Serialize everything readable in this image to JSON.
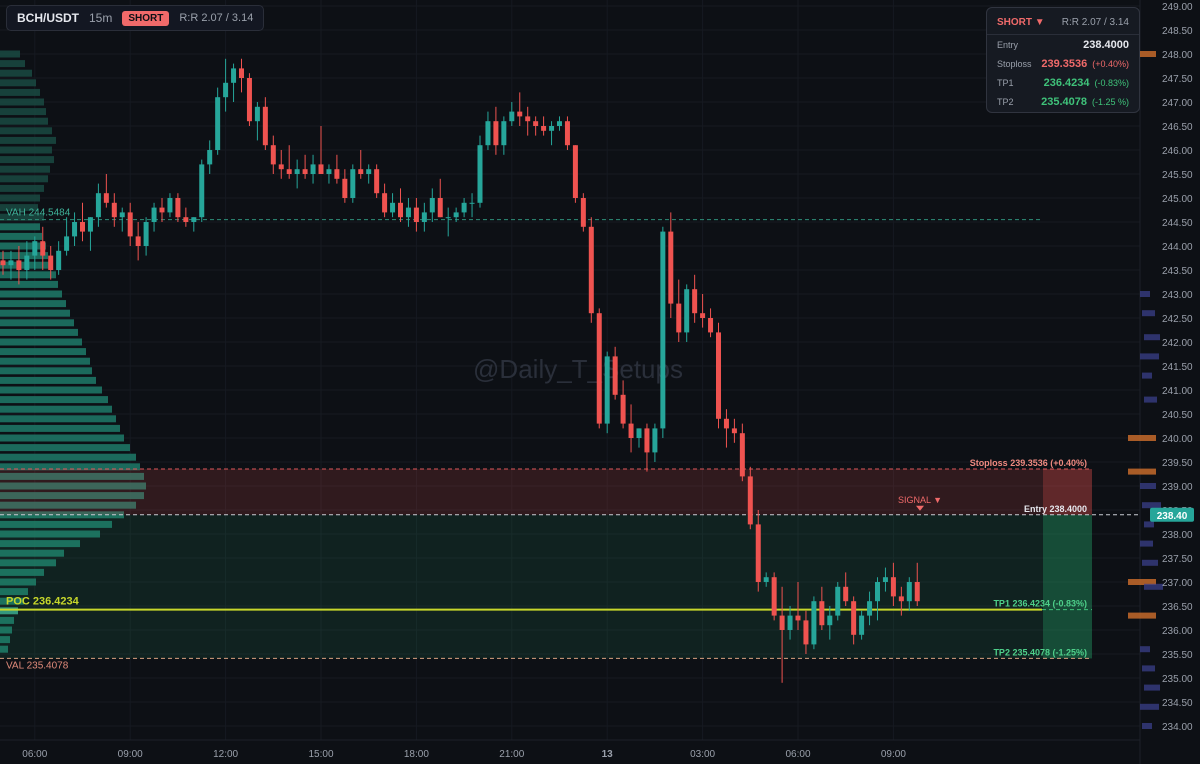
{
  "header": {
    "symbol": "BCH/USDT",
    "timeframe": "15m",
    "side": "SHORT",
    "rr": "R:R 2.07 / 3.14"
  },
  "panel": {
    "title": "SHORT ▼",
    "rr": "R:R 2.07 / 3.14",
    "rows": [
      {
        "label": "Entry",
        "value": "238.4000",
        "pct": ""
      },
      {
        "label": "Stoploss",
        "value": "239.3536",
        "pct": "(+0.40%)"
      },
      {
        "label": "TP1",
        "value": "236.4234",
        "pct": "(-0.83%)"
      },
      {
        "label": "TP2",
        "value": "235.4078",
        "pct": "(-1.25 %)"
      }
    ]
  },
  "watermark": "@Daily_T_Setups",
  "colors": {
    "up": "#26a69a",
    "down": "#ef5350",
    "stop": "#f06a6a",
    "target": "#3fc27a",
    "poc": "#c7d72b",
    "bg": "#0d1015"
  },
  "chart_data": {
    "type": "candlestick",
    "ylim": [
      233.6,
      249.1
    ],
    "yticks": [
      "249.00",
      "248.50",
      "248.00",
      "247.50",
      "247.00",
      "246.50",
      "246.00",
      "245.50",
      "245.00",
      "244.50",
      "244.00",
      "243.50",
      "243.00",
      "242.50",
      "242.00",
      "241.50",
      "241.00",
      "240.50",
      "240.00",
      "239.50",
      "239.00",
      "238.50",
      "238.00",
      "237.50",
      "237.00",
      "236.50",
      "236.00",
      "235.50",
      "235.00",
      "234.50",
      "234.00"
    ],
    "xticks": [
      {
        "label": "06:00",
        "i": 4
      },
      {
        "label": "09:00",
        "i": 16
      },
      {
        "label": "12:00",
        "i": 28
      },
      {
        "label": "15:00",
        "i": 40
      },
      {
        "label": "18:00",
        "i": 52
      },
      {
        "label": "21:00",
        "i": 64
      },
      {
        "label": "13",
        "i": 76
      },
      {
        "label": "03:00",
        "i": 88
      },
      {
        "label": "06:00",
        "i": 100
      },
      {
        "label": "09:00",
        "i": 112
      }
    ],
    "candles": [
      [
        243.7,
        243.9,
        243.4,
        243.6
      ],
      [
        243.6,
        243.9,
        243.3,
        243.7
      ],
      [
        243.7,
        244.0,
        243.2,
        243.5
      ],
      [
        243.5,
        244.1,
        243.3,
        243.8
      ],
      [
        243.8,
        244.2,
        243.5,
        244.1
      ],
      [
        244.1,
        244.4,
        243.5,
        243.8
      ],
      [
        243.8,
        244.0,
        243.3,
        243.5
      ],
      [
        243.5,
        244.1,
        243.4,
        243.9
      ],
      [
        243.9,
        244.6,
        243.8,
        244.2
      ],
      [
        244.2,
        244.7,
        244.0,
        244.5
      ],
      [
        244.5,
        244.9,
        244.1,
        244.3
      ],
      [
        244.3,
        244.6,
        243.9,
        244.6
      ],
      [
        244.6,
        245.3,
        244.4,
        245.1
      ],
      [
        245.1,
        245.5,
        244.8,
        244.9
      ],
      [
        244.9,
        245.1,
        244.4,
        244.6
      ],
      [
        244.6,
        244.8,
        244.3,
        244.7
      ],
      [
        244.7,
        244.9,
        244.0,
        244.2
      ],
      [
        244.2,
        244.5,
        243.7,
        244.0
      ],
      [
        244.0,
        244.6,
        243.8,
        244.5
      ],
      [
        244.5,
        244.9,
        244.3,
        244.8
      ],
      [
        244.8,
        245.0,
        244.5,
        244.7
      ],
      [
        244.7,
        245.1,
        244.6,
        245.0
      ],
      [
        245.0,
        245.1,
        244.5,
        244.6
      ],
      [
        244.6,
        244.8,
        244.4,
        244.5
      ],
      [
        244.5,
        244.6,
        244.3,
        244.6
      ],
      [
        244.6,
        245.8,
        244.5,
        245.7
      ],
      [
        245.7,
        246.2,
        245.5,
        246.0
      ],
      [
        246.0,
        247.3,
        245.9,
        247.1
      ],
      [
        247.1,
        247.9,
        246.8,
        247.4
      ],
      [
        247.4,
        247.8,
        247.0,
        247.7
      ],
      [
        247.7,
        247.9,
        247.2,
        247.5
      ],
      [
        247.5,
        247.6,
        246.5,
        246.6
      ],
      [
        246.6,
        247.0,
        246.2,
        246.9
      ],
      [
        246.9,
        247.1,
        246.0,
        246.1
      ],
      [
        246.1,
        246.3,
        245.5,
        245.7
      ],
      [
        245.7,
        246.0,
        245.4,
        245.6
      ],
      [
        245.6,
        246.1,
        245.4,
        245.5
      ],
      [
        245.5,
        245.8,
        245.2,
        245.6
      ],
      [
        245.6,
        245.9,
        245.4,
        245.5
      ],
      [
        245.5,
        245.9,
        245.3,
        245.7
      ],
      [
        245.7,
        246.5,
        245.5,
        245.5
      ],
      [
        245.5,
        245.7,
        245.3,
        245.6
      ],
      [
        245.6,
        245.9,
        245.3,
        245.4
      ],
      [
        245.4,
        245.6,
        244.9,
        245.0
      ],
      [
        245.0,
        245.7,
        244.9,
        245.6
      ],
      [
        245.6,
        246.0,
        245.4,
        245.5
      ],
      [
        245.5,
        245.7,
        245.3,
        245.6
      ],
      [
        245.6,
        245.7,
        245.0,
        245.1
      ],
      [
        245.1,
        245.3,
        244.6,
        244.7
      ],
      [
        244.7,
        245.1,
        244.6,
        244.9
      ],
      [
        244.9,
        245.2,
        244.5,
        244.6
      ],
      [
        244.6,
        245.0,
        244.4,
        244.8
      ],
      [
        244.8,
        245.0,
        244.3,
        244.5
      ],
      [
        244.5,
        244.9,
        244.3,
        244.7
      ],
      [
        244.7,
        245.2,
        244.5,
        245.0
      ],
      [
        245.0,
        245.4,
        244.6,
        244.6
      ],
      [
        244.6,
        244.8,
        244.2,
        244.6
      ],
      [
        244.6,
        244.8,
        244.5,
        244.7
      ],
      [
        244.7,
        245.0,
        244.6,
        244.9
      ],
      [
        244.9,
        245.1,
        244.6,
        244.9
      ],
      [
        244.9,
        246.3,
        244.8,
        246.1
      ],
      [
        246.1,
        246.8,
        246.0,
        246.6
      ],
      [
        246.6,
        246.9,
        245.9,
        246.1
      ],
      [
        246.1,
        246.7,
        245.9,
        246.6
      ],
      [
        246.6,
        247.0,
        246.5,
        246.8
      ],
      [
        246.8,
        247.2,
        246.5,
        246.7
      ],
      [
        246.7,
        246.9,
        246.3,
        246.6
      ],
      [
        246.6,
        246.7,
        246.3,
        246.5
      ],
      [
        246.5,
        246.7,
        246.3,
        246.4
      ],
      [
        246.4,
        246.6,
        246.1,
        246.5
      ],
      [
        246.5,
        246.7,
        246.4,
        246.6
      ],
      [
        246.6,
        246.7,
        246.0,
        246.1
      ],
      [
        246.1,
        246.1,
        244.9,
        245.0
      ],
      [
        245.0,
        245.1,
        244.3,
        244.4
      ],
      [
        244.4,
        244.6,
        242.4,
        242.6
      ],
      [
        242.6,
        242.7,
        240.2,
        240.3
      ],
      [
        240.3,
        241.8,
        240.1,
        241.7
      ],
      [
        241.7,
        241.9,
        240.8,
        240.9
      ],
      [
        240.9,
        241.2,
        240.2,
        240.3
      ],
      [
        240.3,
        240.7,
        239.7,
        240.0
      ],
      [
        240.0,
        240.2,
        239.8,
        240.2
      ],
      [
        240.2,
        240.3,
        239.3,
        239.7
      ],
      [
        239.7,
        240.3,
        239.5,
        240.2
      ],
      [
        240.2,
        244.4,
        240.0,
        244.3
      ],
      [
        244.3,
        244.7,
        242.5,
        242.8
      ],
      [
        242.8,
        243.3,
        242.0,
        242.2
      ],
      [
        242.2,
        243.2,
        242.0,
        243.1
      ],
      [
        243.1,
        243.4,
        242.4,
        242.6
      ],
      [
        242.6,
        243.0,
        242.3,
        242.5
      ],
      [
        242.5,
        242.7,
        242.1,
        242.2
      ],
      [
        242.2,
        242.4,
        240.2,
        240.4
      ],
      [
        240.4,
        240.6,
        239.8,
        240.2
      ],
      [
        240.2,
        240.4,
        239.9,
        240.1
      ],
      [
        240.1,
        240.3,
        239.1,
        239.2
      ],
      [
        239.2,
        239.4,
        238.1,
        238.2
      ],
      [
        238.2,
        238.5,
        236.8,
        237.0
      ],
      [
        237.0,
        237.2,
        236.9,
        237.1
      ],
      [
        237.1,
        237.2,
        236.2,
        236.3
      ],
      [
        236.3,
        236.9,
        234.9,
        236.0
      ],
      [
        236.0,
        236.5,
        235.8,
        236.3
      ],
      [
        236.3,
        237.0,
        236.0,
        236.2
      ],
      [
        236.2,
        236.4,
        235.5,
        235.7
      ],
      [
        235.7,
        236.7,
        235.6,
        236.6
      ],
      [
        236.6,
        236.9,
        236.0,
        236.1
      ],
      [
        236.1,
        236.5,
        235.8,
        236.3
      ],
      [
        236.3,
        237.0,
        236.2,
        236.9
      ],
      [
        236.9,
        237.2,
        236.5,
        236.6
      ],
      [
        236.6,
        236.7,
        235.7,
        235.9
      ],
      [
        235.9,
        236.4,
        235.8,
        236.3
      ],
      [
        236.3,
        236.8,
        236.1,
        236.6
      ],
      [
        236.6,
        237.1,
        236.2,
        237.0
      ],
      [
        237.0,
        237.3,
        236.8,
        237.1
      ],
      [
        237.1,
        237.4,
        236.5,
        236.7
      ],
      [
        236.7,
        236.9,
        236.3,
        236.6
      ],
      [
        236.6,
        237.1,
        236.4,
        237.0
      ],
      [
        237.0,
        237.4,
        236.5,
        236.6
      ]
    ],
    "poc_label": "POC 236.4234",
    "poc": 236.4234,
    "vah_label": "VAH 244.5484",
    "vah": 244.5484,
    "val_label": "VAL 235.4078",
    "val": 235.4078,
    "entry_label": "Entry 238.4000",
    "entry": 238.4,
    "stop_label": "Stoploss 239.3536 (+0.40%)",
    "stop": 239.3536,
    "tp1_label": "TP1 236.4234 (-0.83%)",
    "tp1": 236.4234,
    "tp2_label": "TP2 235.4078 (-1.25%)",
    "tp2": 235.4078,
    "signal_label": "SIGNAL ▼",
    "price_tag": "238.40",
    "volume_profile_top": 248.0,
    "volume_profile": [
      20,
      25,
      32,
      36,
      40,
      44,
      46,
      48,
      52,
      56,
      52,
      54,
      50,
      48,
      44,
      40,
      38,
      44,
      40,
      42,
      46,
      48,
      52,
      56,
      58,
      62,
      66,
      70,
      74,
      78,
      82,
      86,
      90,
      92,
      96,
      102,
      108,
      112,
      116,
      120,
      124,
      130,
      136,
      140,
      144,
      146,
      144,
      136,
      124,
      112,
      100,
      80,
      64,
      56,
      44,
      36,
      28,
      24,
      18,
      14,
      12,
      10,
      8
    ]
  }
}
